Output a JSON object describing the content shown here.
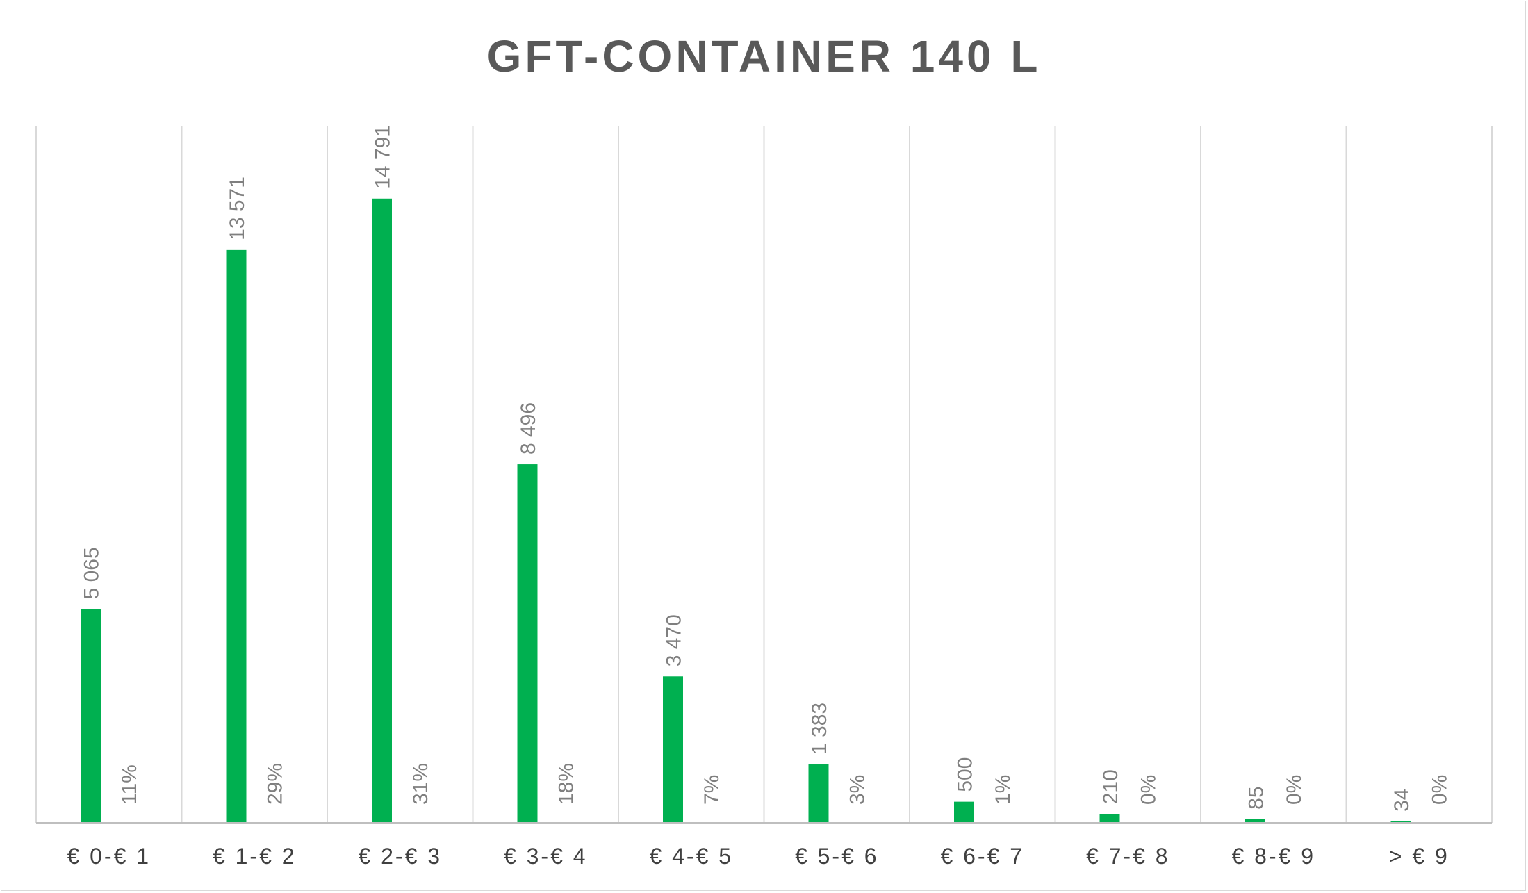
{
  "chart_data": {
    "type": "bar",
    "title": "GFT-CONTAINER 140 L",
    "categories": [
      "€ 0-€ 1",
      "€ 1-€ 2",
      "€ 2-€ 3",
      "€ 3-€ 4",
      "€ 4-€ 5",
      "€ 5-€ 6",
      "€ 6-€ 7",
      "€ 7-€ 8",
      "€ 8-€ 9",
      "> € 9"
    ],
    "series": [
      {
        "values": [
          5065,
          13571,
          14791,
          8496,
          3470,
          1383,
          500,
          210,
          85,
          34
        ],
        "value_labels": [
          "5 065",
          "13 571",
          "14 791",
          "8 496",
          "3 470",
          "1 383",
          "500",
          "210",
          "85",
          "34"
        ],
        "color": "#00b050"
      },
      {
        "values": [
          11,
          29,
          31,
          18,
          7,
          3,
          1,
          0,
          0,
          0
        ],
        "value_labels": [
          "11%",
          "29%",
          "31%",
          "18%",
          "7%",
          "3%",
          "1%",
          "0%",
          "0%",
          "0%"
        ],
        "unit": "%",
        "color": "#00b050"
      }
    ],
    "xlabel": "",
    "ylabel": "",
    "ylim": [
      0,
      16500
    ],
    "y_axis_visible": false,
    "grid": "vertical",
    "legend": "none"
  },
  "colors": {
    "bar": "#00b050",
    "title": "#595959",
    "grid": "#d9d9d9",
    "axis": "#bfbfbf",
    "data_label": "#7f7f7f",
    "category_label": "#404040"
  }
}
